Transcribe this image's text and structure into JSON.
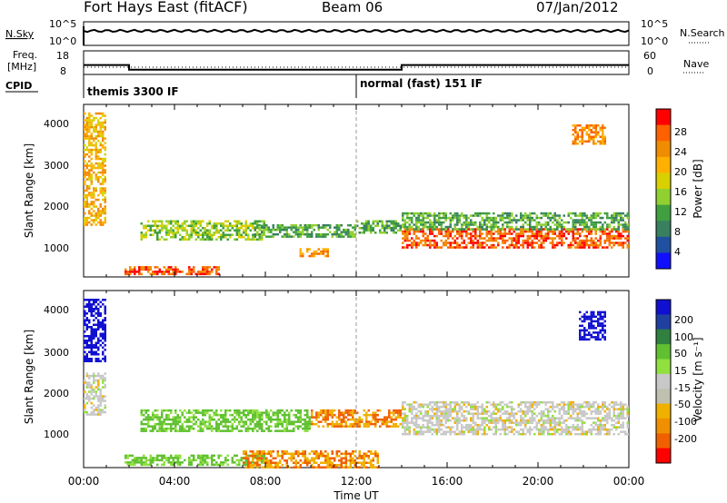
{
  "header": {
    "station": "Fort Hays East (fitACF)",
    "beam": "Beam 06",
    "date": "07/Jan/2012"
  },
  "noise_panel": {
    "left_label": "N.Sky",
    "left_ticks": [
      "10^5",
      "10^0"
    ],
    "right_label": "N.Search",
    "right_ticks": [
      "10^5",
      "10^0"
    ]
  },
  "freq_panel": {
    "left_label_top": "Freq.",
    "left_label_bottom": "[MHz]",
    "left_ticks": [
      "18",
      "8"
    ],
    "right_label": "Nave",
    "right_ticks": [
      "60",
      "0"
    ],
    "cpid_label": "CPID"
  },
  "cpid_segments": [
    {
      "start_hour": 0,
      "label": "themis 3300 IF"
    },
    {
      "start_hour": 12,
      "label": "normal (fast) 151 IF"
    }
  ],
  "power_panel": {
    "ylabel": "Slant Range [km]",
    "yticks": [
      "1000",
      "2000",
      "3000",
      "4000"
    ],
    "colorbar_label": "Power [dB]",
    "colorbar_ticks": [
      "28",
      "24",
      "20",
      "16",
      "12",
      "8",
      "4"
    ],
    "colors": [
      "#ff0000",
      "#ff6000",
      "#f08c00",
      "#ffb000",
      "#d8d000",
      "#90d030",
      "#40a040",
      "#388060",
      "#2050a0",
      "#1010ff"
    ]
  },
  "velocity_panel": {
    "ylabel": "Slant Range [km]",
    "yticks": [
      "1000",
      "2000",
      "3000",
      "4000"
    ],
    "colorbar_label": "Velocity [m s⁻¹]",
    "colorbar_ticks": [
      "200",
      "100",
      "50",
      "15",
      "-15",
      "-50",
      "-100",
      "-200"
    ],
    "colors": [
      "#1010d0",
      "#2040a0",
      "#308040",
      "#60c030",
      "#90e040",
      "#c8c8c8",
      "#c0c0b0",
      "#f0b000",
      "#f09000",
      "#f06000",
      "#ff0000"
    ]
  },
  "x_axis": {
    "ticks": [
      "00:00",
      "04:00",
      "08:00",
      "12:00",
      "16:00",
      "20:00",
      "00:00"
    ],
    "label": "Time UT"
  },
  "chart_data": {
    "type": "heatmap",
    "x_range_hours": [
      0,
      24
    ],
    "y_range_km": [
      180,
      4500
    ],
    "freq_steps_mhz": [
      {
        "start": 0,
        "end": 2,
        "value": 12
      },
      {
        "start": 2,
        "end": 14,
        "value": 10
      },
      {
        "start": 14,
        "end": 24,
        "value": 12
      }
    ],
    "power_regions": [
      {
        "t0": 0.0,
        "t1": 1.0,
        "r0": 1500,
        "r1": 4300,
        "dB": 20
      },
      {
        "t0": 1.8,
        "t1": 6.0,
        "r0": 250,
        "r1": 450,
        "dB": 26
      },
      {
        "t0": 2.5,
        "t1": 8.0,
        "r0": 1100,
        "r1": 1600,
        "dB": 12
      },
      {
        "t0": 7.5,
        "t1": 12.0,
        "r0": 1200,
        "r1": 1500,
        "dB": 10
      },
      {
        "t0": 9.5,
        "t1": 10.8,
        "r0": 700,
        "r1": 900,
        "dB": 24
      },
      {
        "t0": 12.0,
        "t1": 14.0,
        "r0": 1300,
        "r1": 1600,
        "dB": 10
      },
      {
        "t0": 14.0,
        "t1": 24.0,
        "r0": 900,
        "r1": 1400,
        "dB": 28
      },
      {
        "t0": 14.0,
        "t1": 24.0,
        "r0": 1400,
        "r1": 1800,
        "dB": 10
      },
      {
        "t0": 21.5,
        "t1": 23.0,
        "r0": 3500,
        "r1": 4000,
        "dB": 24
      }
    ],
    "velocity_regions": [
      {
        "t0": 0.0,
        "t1": 1.0,
        "r0": 2800,
        "r1": 4300,
        "v": 200
      },
      {
        "t0": 0.0,
        "t1": 1.0,
        "r0": 1500,
        "r1": 2500,
        "v": 0
      },
      {
        "t0": 1.8,
        "t1": 8.0,
        "r0": 250,
        "r1": 500,
        "v": 40
      },
      {
        "t0": 2.5,
        "t1": 10.0,
        "r0": 1100,
        "r1": 1600,
        "v": 40
      },
      {
        "t0": 7.0,
        "t1": 13.0,
        "r0": 200,
        "r1": 600,
        "v": -50
      },
      {
        "t0": 10.0,
        "t1": 14.0,
        "r0": 1200,
        "r1": 1600,
        "v": -50
      },
      {
        "t0": 14.0,
        "t1": 24.0,
        "r0": 1000,
        "r1": 1800,
        "v": 0
      },
      {
        "t0": 21.8,
        "t1": 23.0,
        "r0": 3300,
        "r1": 4000,
        "v": 200
      }
    ]
  }
}
